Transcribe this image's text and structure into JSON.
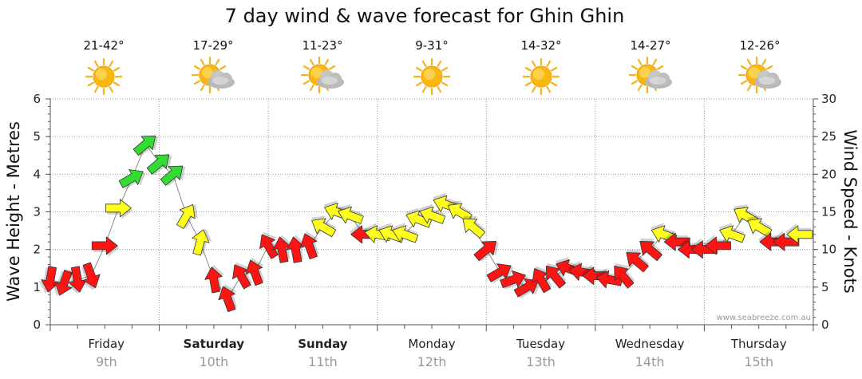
{
  "chart_data": {
    "type": "line",
    "title": "7 day wind & wave forecast for Ghin Ghin",
    "y_left_label": "Wave Height - Metres",
    "y_right_label": "Wind Speed - Knots",
    "y_left_ticks": [
      "0",
      "1",
      "2",
      "3",
      "4",
      "5",
      "6"
    ],
    "y_right_ticks": [
      "0",
      "5",
      "10",
      "15",
      "20",
      "25",
      "30"
    ],
    "y_left_range": [
      0,
      6
    ],
    "y_right_range": [
      0,
      30
    ],
    "credit": "www.seabreeze.com.au",
    "days": [
      {
        "day": "Friday",
        "date": "9th",
        "temp": "21-42°",
        "icon": "sun-icon",
        "bold": false
      },
      {
        "day": "Saturday",
        "date": "10th",
        "temp": "17-29°",
        "icon": "sun-cloud-icon",
        "bold": true
      },
      {
        "day": "Sunday",
        "date": "11th",
        "temp": "11-23°",
        "icon": "sun-cloud-icon",
        "bold": true
      },
      {
        "day": "Monday",
        "date": "12th",
        "temp": "9-31°",
        "icon": "sun-icon",
        "bold": false
      },
      {
        "day": "Tuesday",
        "date": "13th",
        "temp": "14-32°",
        "icon": "sun-icon",
        "bold": false
      },
      {
        "day": "Wednesday",
        "date": "14th",
        "temp": "14-27°",
        "icon": "sun-cloud-icon",
        "bold": false
      },
      {
        "day": "Thursday",
        "date": "15th",
        "temp": "12-26°",
        "icon": "sun-cloud-icon",
        "bold": false
      }
    ],
    "colors": {
      "strong": "#32dc32",
      "moderate": "#ffff1e",
      "light": "#ff1414",
      "outline": "#333333"
    },
    "series": [
      {
        "name": "Wind Speed - Knots",
        "axis": "right",
        "x_hours": [
          0,
          3,
          6,
          9,
          12,
          15,
          18,
          21,
          24,
          27,
          30,
          33,
          36,
          39,
          42,
          45,
          48,
          51,
          54,
          57,
          60,
          63,
          66,
          69,
          72,
          75,
          78,
          81,
          84,
          87,
          90,
          93,
          96,
          99,
          102,
          105,
          108,
          111,
          114,
          117,
          120,
          123,
          126,
          129,
          132,
          135,
          138,
          141,
          144,
          147,
          150,
          153,
          156,
          159,
          162,
          165
        ],
        "values": [
          6,
          5.5,
          6,
          6.5,
          10.5,
          15.5,
          19.5,
          24,
          21.5,
          20,
          14.5,
          11,
          6,
          3.5,
          6.5,
          7,
          10.5,
          10,
          10,
          10.5,
          13,
          15,
          14.5,
          12,
          12,
          12,
          12,
          14,
          14.5,
          16,
          15,
          13,
          10,
          7,
          6,
          5,
          6,
          6.5,
          7.5,
          7,
          6.5,
          6,
          6.5,
          8.5,
          10,
          12,
          11,
          10,
          10,
          10.5,
          12,
          14.5,
          13,
          11,
          11,
          12
        ],
        "speed_class": [
          "light",
          "light",
          "light",
          "light",
          "light",
          "moderate",
          "strong",
          "strong",
          "strong",
          "strong",
          "moderate",
          "moderate",
          "light",
          "light",
          "light",
          "light",
          "light",
          "light",
          "light",
          "light",
          "moderate",
          "moderate",
          "moderate",
          "light",
          "moderate",
          "moderate",
          "moderate",
          "moderate",
          "moderate",
          "moderate",
          "moderate",
          "moderate",
          "light",
          "light",
          "light",
          "light",
          "light",
          "light",
          "light",
          "light",
          "light",
          "light",
          "light",
          "light",
          "light",
          "moderate",
          "light",
          "light",
          "light",
          "light",
          "moderate",
          "moderate",
          "moderate",
          "light",
          "light",
          "moderate"
        ],
        "direction_deg": [
          100,
          110,
          80,
          70,
          0,
          0,
          330,
          320,
          320,
          320,
          300,
          285,
          260,
          250,
          240,
          250,
          240,
          260,
          260,
          250,
          210,
          200,
          200,
          180,
          190,
          200,
          200,
          200,
          200,
          200,
          210,
          220,
          320,
          330,
          340,
          330,
          240,
          230,
          200,
          190,
          180,
          190,
          230,
          220,
          220,
          200,
          180,
          180,
          180,
          180,
          200,
          210,
          210,
          180,
          180,
          180
        ]
      },
      {
        "name": "Wave Height - Metres",
        "axis": "left",
        "x_hours": [
          0,
          3,
          6,
          9,
          12,
          15,
          18,
          21,
          24,
          27,
          30,
          33,
          36,
          39,
          42,
          45,
          48,
          51,
          54,
          57,
          60,
          63,
          66,
          69,
          72,
          75,
          78,
          81,
          84,
          87,
          90,
          93,
          96,
          99,
          102,
          105,
          108,
          111,
          114,
          117,
          120,
          123,
          126,
          129,
          132,
          135,
          138,
          141,
          144,
          147,
          150,
          153,
          156,
          159,
          162,
          165
        ],
        "values": [
          1.2,
          1.1,
          1.2,
          1.3,
          2.1,
          3.1,
          3.9,
          4.8,
          4.3,
          4.0,
          2.9,
          2.2,
          1.2,
          0.7,
          1.3,
          1.4,
          2.1,
          2.0,
          2.0,
          2.1,
          2.6,
          3.0,
          2.9,
          2.4,
          2.4,
          2.4,
          2.4,
          2.8,
          2.9,
          3.2,
          3.0,
          2.6,
          2.0,
          1.4,
          1.2,
          1.0,
          1.2,
          1.3,
          1.5,
          1.4,
          1.3,
          1.2,
          1.3,
          1.7,
          2.0,
          2.4,
          2.2,
          2.0,
          2.0,
          2.1,
          2.4,
          2.9,
          2.6,
          2.2,
          2.2,
          2.4
        ]
      }
    ]
  }
}
